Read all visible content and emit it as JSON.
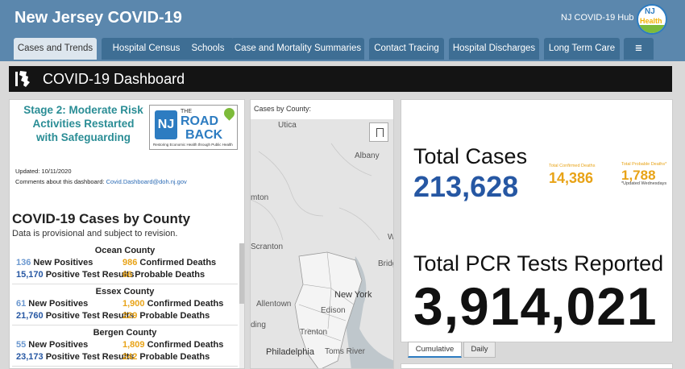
{
  "header": {
    "title": "New Jersey COVID-19",
    "hub_label": "NJ COVID-19 Hub",
    "logo": {
      "line1": "NJ",
      "line2": "Health",
      "icon": "nj-health-logo"
    }
  },
  "tabs": [
    {
      "label": "Cases and Trends",
      "active": true
    },
    {
      "label": "Hospital Census"
    },
    {
      "label": "Schools"
    },
    {
      "label": "Case and Mortality Summaries"
    },
    {
      "label": "Contact Tracing"
    },
    {
      "label": "Hospital Discharges"
    },
    {
      "label": "Long Term Care"
    },
    {
      "label": "≣",
      "icon": "list-menu-icon"
    }
  ],
  "dashboard": {
    "title": "COVID-19 Dashboard"
  },
  "left": {
    "stage_text": "Stage 2: Moderate Risk Activities Restarted with Safeguarding",
    "roadback": {
      "the": "THE",
      "road": "ROAD",
      "back": "BACK",
      "tagline": "Restoring Economic Health through Public Health",
      "nj": "NJ"
    },
    "updated": "Updated: 10/11/2020",
    "comments_prefix": "Comments about this dashboard: ",
    "comments_email": "Covid.Dashboard@doh.nj.gov",
    "heading": "COVID-19 Cases by County",
    "note": "Data is provisional and subject to revision.",
    "counties": [
      {
        "name": "Ocean County",
        "new_positives": "136",
        "new_label": " New Positives",
        "confirmed_deaths": "986",
        "confirmed_label": " Confirmed Deaths",
        "positive_results": "15,170",
        "positive_label": " Positive Test Results",
        "probable_deaths": "66",
        "probable_label": " Probable Deaths"
      },
      {
        "name": "Essex County",
        "new_positives": "61",
        "new_label": " New Positives",
        "confirmed_deaths": "1,900",
        "confirmed_label": " Confirmed Deaths",
        "positive_results": "21,760",
        "positive_label": " Positive Test Results",
        "probable_deaths": "229",
        "probable_label": " Probable Deaths"
      },
      {
        "name": "Bergen County",
        "new_positives": "55",
        "new_label": " New Positives",
        "confirmed_deaths": "1,809",
        "confirmed_label": " Confirmed Deaths",
        "positive_results": "23,173",
        "positive_label": " Positive Test Results",
        "probable_deaths": "242",
        "probable_label": " Probable Deaths"
      }
    ]
  },
  "map": {
    "title": "Cases by County:",
    "places": [
      "Utica",
      "Albany",
      "mton",
      "Scranton",
      "W",
      "Bridg",
      "New York",
      "Allentown",
      "Edison",
      "ding",
      "Trenton",
      "Philadelphia",
      "Toms River"
    ]
  },
  "stats": {
    "total_cases_label": "Total Cases",
    "total_cases_value": "213,628",
    "confirmed_deaths_label": "Total Confirmed Deaths",
    "confirmed_deaths_value": "14,386",
    "probable_deaths_label": "Total Probable Deaths*",
    "probable_deaths_value": "1,788",
    "probable_note": "*Updated Wednesdays",
    "pcr_label": "Total PCR Tests Reported",
    "pcr_value": "3,914,021"
  },
  "subtabs": [
    {
      "label": "Cumulative",
      "active": true
    },
    {
      "label": "Daily"
    }
  ],
  "colors": {
    "header_bg": "#5b87ad",
    "tab_bg": "#3e6e94",
    "accent_blue": "#2657a3",
    "accent_orange": "#e8a317",
    "teal": "#2a8d95"
  }
}
